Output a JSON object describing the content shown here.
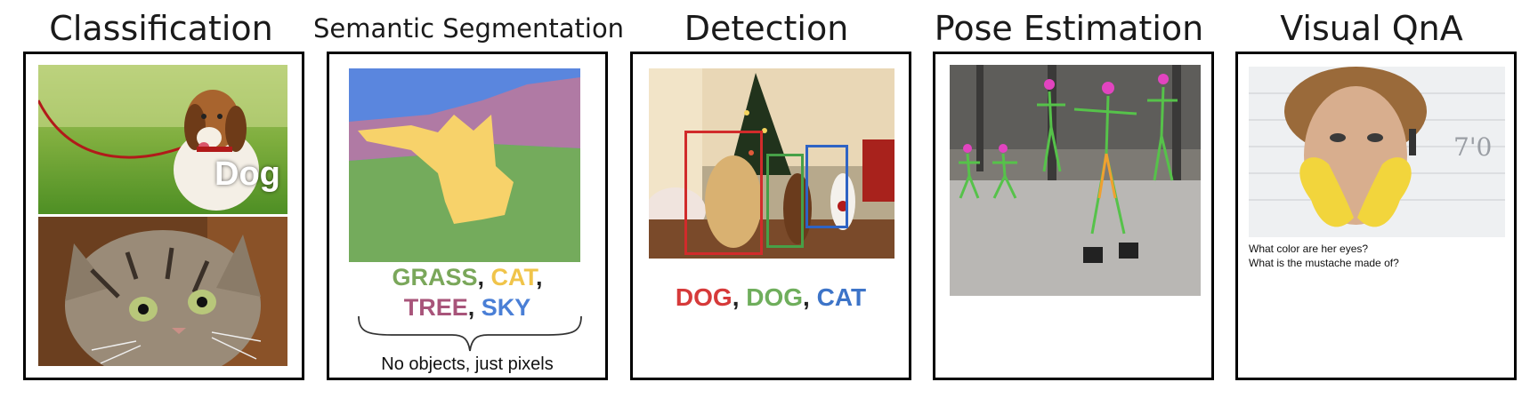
{
  "titles": {
    "classification": "Classification",
    "segmentation": "Semantic Segmentation",
    "detection": "Detection",
    "pose": "Pose Estimation",
    "vqa": "Visual QnA"
  },
  "classification": {
    "label": "Dog"
  },
  "segmentation": {
    "classes_line1": [
      {
        "text": "GRASS",
        "color": "#7aa75a"
      },
      {
        "text": "CAT",
        "color": "#f0c44a"
      }
    ],
    "classes_line2": [
      {
        "text": "TREE",
        "color": "#a8547a"
      },
      {
        "text": "SKY",
        "color": "#4a7fd6"
      }
    ],
    "separator": ",",
    "note": "No objects, just pixels",
    "colors": {
      "sky": "#5a86de",
      "tree": "#b07aa4",
      "grass": "#74ab5c",
      "cat": "#f7d26a"
    }
  },
  "detection": {
    "labels": [
      {
        "text": "DOG",
        "color": "#d63a3a"
      },
      {
        "text": "DOG",
        "color": "#6fae5c"
      },
      {
        "text": "CAT",
        "color": "#3d74c8"
      }
    ],
    "separator": ","
  },
  "vqa": {
    "questions": [
      "What color are her eyes?",
      "What is the mustache made of?"
    ]
  }
}
